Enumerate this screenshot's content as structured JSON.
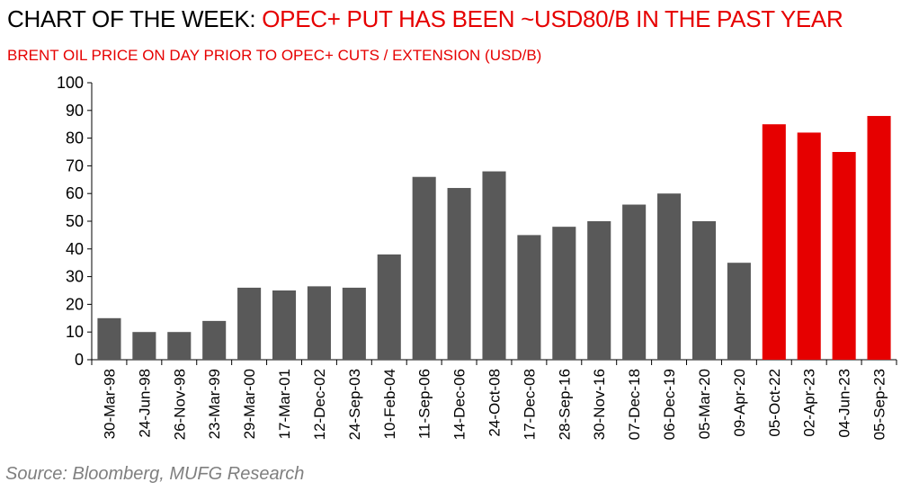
{
  "header": {
    "title_prefix": "CHART OF THE WEEK: ",
    "title_highlight": "OPEC+ PUT HAS BEEN ~USD80/B IN THE PAST YEAR",
    "subtitle": "BRENT OIL PRICE ON DAY PRIOR TO OPEC+ CUTS / EXTENSION (USD/B)"
  },
  "footer": {
    "source": "Source: Bloomberg, MUFG Research"
  },
  "colors": {
    "bar_default": "#595959",
    "bar_highlight": "#e60000",
    "title_highlight": "#e60000",
    "source_text": "#7f7f7f"
  },
  "chart_data": {
    "type": "bar",
    "title": "BRENT OIL PRICE ON DAY PRIOR TO OPEC+ CUTS / EXTENSION (USD/B)",
    "xlabel": "",
    "ylabel": "",
    "ylim": [
      0,
      100
    ],
    "yticks": [
      0,
      10,
      20,
      30,
      40,
      50,
      60,
      70,
      80,
      90,
      100
    ],
    "grid": false,
    "categories": [
      "30-Mar-98",
      "24-Jun-98",
      "26-Nov-98",
      "23-Mar-99",
      "29-Mar-00",
      "17-Mar-01",
      "12-Dec-02",
      "24-Sep-03",
      "10-Feb-04",
      "11-Sep-06",
      "14-Dec-06",
      "24-Oct-08",
      "17-Dec-08",
      "28-Sep-16",
      "30-Nov-16",
      "07-Dec-18",
      "06-Dec-19",
      "05-Mar-20",
      "09-Apr-20",
      "05-Oct-22",
      "02-Apr-23",
      "04-Jun-23",
      "05-Sep-23"
    ],
    "values": [
      15,
      10,
      10,
      14,
      26,
      25,
      26.5,
      26,
      38,
      66,
      62,
      68,
      45,
      48,
      50,
      56,
      60,
      50,
      35,
      85,
      82,
      75,
      88
    ],
    "highlighted_categories": [
      "05-Oct-22",
      "02-Apr-23",
      "04-Jun-23",
      "05-Sep-23"
    ]
  }
}
